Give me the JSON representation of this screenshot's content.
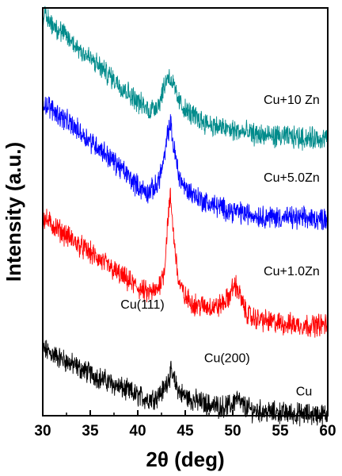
{
  "chart_data": {
    "type": "line",
    "title": "",
    "xlabel": "2θ (deg)",
    "ylabel": "Intensity (a.u.)",
    "xlim": [
      30,
      60
    ],
    "x_ticks": [
      30,
      35,
      40,
      45,
      50,
      55,
      60
    ],
    "y_ticks": false,
    "grid": false,
    "legend": "none",
    "series": [
      {
        "name": "Cu",
        "color": "#000000",
        "points": [
          [
            30,
            0.6
          ],
          [
            32,
            0.51
          ],
          [
            34,
            0.42
          ],
          [
            36,
            0.34
          ],
          [
            38,
            0.26
          ],
          [
            40,
            0.18
          ],
          [
            41,
            0.15
          ],
          [
            42,
            0.17
          ],
          [
            42.8,
            0.24
          ],
          [
            43.2,
            0.34
          ],
          [
            43.5,
            0.38
          ],
          [
            43.9,
            0.3
          ],
          [
            44.5,
            0.2
          ],
          [
            45.5,
            0.15
          ],
          [
            47,
            0.11
          ],
          [
            48.5,
            0.08
          ],
          [
            49.8,
            0.09
          ],
          [
            50.4,
            0.16
          ],
          [
            50.9,
            0.1
          ],
          [
            52,
            0.05
          ],
          [
            54,
            0.03
          ],
          [
            56,
            0.02
          ],
          [
            58,
            0.01
          ],
          [
            60,
            0.01
          ]
        ]
      },
      {
        "name": "Cu+1.0Zn",
        "color": "#ff0000",
        "points": [
          [
            30,
            1.78
          ],
          [
            32,
            1.65
          ],
          [
            34,
            1.52
          ],
          [
            36,
            1.4
          ],
          [
            38,
            1.27
          ],
          [
            40,
            1.15
          ],
          [
            41,
            1.1
          ],
          [
            42,
            1.12
          ],
          [
            42.8,
            1.3
          ],
          [
            43.2,
            1.8
          ],
          [
            43.45,
            1.96
          ],
          [
            43.8,
            1.6
          ],
          [
            44.3,
            1.2
          ],
          [
            45,
            1.06
          ],
          [
            46,
            1.0
          ],
          [
            47,
            0.98
          ],
          [
            48.5,
            0.98
          ],
          [
            49.5,
            1.05
          ],
          [
            50.2,
            1.18
          ],
          [
            50.6,
            1.12
          ],
          [
            51.3,
            0.94
          ],
          [
            52,
            0.88
          ],
          [
            54,
            0.84
          ],
          [
            56,
            0.82
          ],
          [
            58,
            0.81
          ],
          [
            60,
            0.82
          ]
        ]
      },
      {
        "name": "Cu+5.0Zn",
        "color": "#0000ff",
        "points": [
          [
            30,
            2.82
          ],
          [
            32,
            2.68
          ],
          [
            34,
            2.54
          ],
          [
            36,
            2.4
          ],
          [
            38,
            2.24
          ],
          [
            40,
            2.06
          ],
          [
            41,
            2.0
          ],
          [
            42,
            2.06
          ],
          [
            42.8,
            2.3
          ],
          [
            43.2,
            2.56
          ],
          [
            43.45,
            2.62
          ],
          [
            43.8,
            2.4
          ],
          [
            44.4,
            2.14
          ],
          [
            45,
            2.04
          ],
          [
            46,
            1.98
          ],
          [
            47,
            1.92
          ],
          [
            49,
            1.86
          ],
          [
            51,
            1.82
          ],
          [
            53,
            1.79
          ],
          [
            55,
            1.78
          ],
          [
            57,
            1.77
          ],
          [
            60,
            1.77
          ]
        ]
      },
      {
        "name": "Cu+10 Zn",
        "color": "#008b8b",
        "points": [
          [
            30,
            3.6
          ],
          [
            32,
            3.44
          ],
          [
            34,
            3.28
          ],
          [
            36,
            3.13
          ],
          [
            38,
            2.98
          ],
          [
            40,
            2.82
          ],
          [
            41.2,
            2.74
          ],
          [
            42.2,
            2.8
          ],
          [
            42.8,
            2.96
          ],
          [
            43.2,
            3.06
          ],
          [
            43.6,
            3.0
          ],
          [
            44.2,
            2.84
          ],
          [
            45,
            2.74
          ],
          [
            46.5,
            2.66
          ],
          [
            48,
            2.6
          ],
          [
            50,
            2.56
          ],
          [
            52,
            2.53
          ],
          [
            54,
            2.51
          ],
          [
            56,
            2.5
          ],
          [
            58,
            2.49
          ],
          [
            60,
            2.49
          ]
        ]
      }
    ],
    "annotations": [
      {
        "text": "Cu+10 Zn",
        "x": 56.2,
        "y": 2.8
      },
      {
        "text": "Cu+5.0Zn",
        "x": 56.2,
        "y": 2.1
      },
      {
        "text": "Cu+1.0Zn",
        "x": 56.2,
        "y": 1.26
      },
      {
        "text": "Cu",
        "x": 57.5,
        "y": 0.18
      },
      {
        "text": "Cu(111)",
        "x": 40.5,
        "y": 0.96
      },
      {
        "text": "Cu(200)",
        "x": 49.4,
        "y": 0.48
      }
    ]
  }
}
